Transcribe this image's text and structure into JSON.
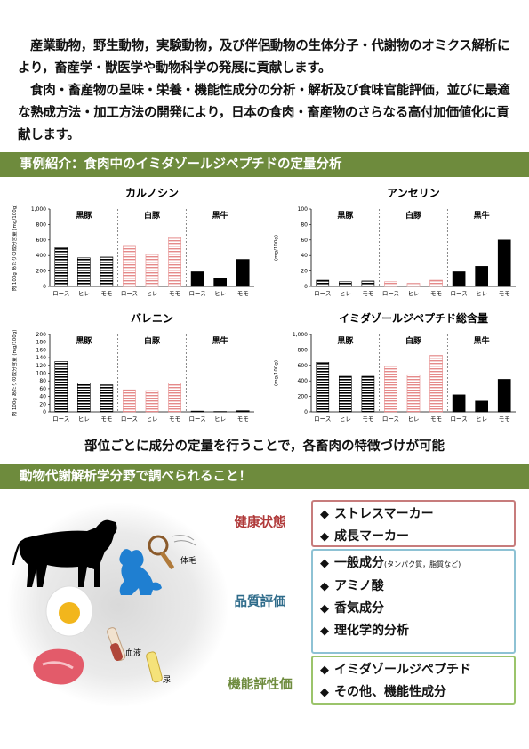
{
  "intro": {
    "p1": "産業動物，野生動物，実験動物，及び伴侶動物の生体分子・代謝物のオミクス解析により，畜産学・獣医学や動物科学の発展に貢献します。",
    "p2": "食肉・畜産物の呈味・栄養・機能性成分の分析・解析及び食味官能評価，並びに最適な熟成方法・加工方法の開発により，日本の食肉・畜産物のさらなる高付加価値化に貢献します。"
  },
  "section1": {
    "title": "事例紹介：食肉中のイミダゾールジペプチドの定量分析"
  },
  "caption": "部位ごとに成分の定量を行うことで，各畜肉の特徴づけが可能",
  "section2": {
    "title": "動物代謝解析学分野で調べられること！"
  },
  "colors": {
    "kurobuta": "#000000",
    "shirobuta": "#e58a8a",
    "kurogyu": "#000000",
    "header_bg": "#6e8b3d"
  },
  "chart_data": [
    {
      "type": "bar",
      "title": "カルノシン",
      "ylabel": "肉 100g あたりの成分含量 (mg/100g)",
      "ylim": [
        0,
        1000
      ],
      "yticks": [
        "0",
        "200",
        "400",
        "600",
        "800",
        "1,000"
      ],
      "groups": [
        "黒豚",
        "白豚",
        "黒牛"
      ],
      "categories": [
        "ロース",
        "ヒレ",
        "モモ",
        "ロース",
        "ヒレ",
        "モモ",
        "ロース",
        "ヒレ",
        "モモ"
      ],
      "values": [
        500,
        370,
        380,
        530,
        420,
        640,
        190,
        110,
        350
      ]
    },
    {
      "type": "bar",
      "title": "アンセリン",
      "ylabel": "(mg/100g)",
      "ylim": [
        0,
        100
      ],
      "yticks": [
        "0",
        "20",
        "40",
        "60",
        "80",
        "100"
      ],
      "groups": [
        "黒豚",
        "白豚",
        "黒牛"
      ],
      "categories": [
        "ロース",
        "ヒレ",
        "モモ",
        "ロース",
        "ヒレ",
        "モモ",
        "ロース",
        "ヒレ",
        "モモ"
      ],
      "values": [
        8,
        6,
        7,
        6,
        4,
        8,
        19,
        26,
        60
      ]
    },
    {
      "type": "bar",
      "title": "バレニン",
      "ylabel": "肉 100g あたりの成分含量 (mg/100g)",
      "ylim": [
        0,
        200
      ],
      "yticks": [
        "0",
        "20",
        "40",
        "60",
        "80",
        "100",
        "120",
        "140",
        "160",
        "180",
        "200"
      ],
      "groups": [
        "黒豚",
        "白豚",
        "黒牛"
      ],
      "categories": [
        "ロース",
        "ヒレ",
        "モモ",
        "ロース",
        "ヒレ",
        "モモ",
        "ロース",
        "ヒレ",
        "モモ"
      ],
      "values": [
        130,
        75,
        70,
        57,
        55,
        75,
        2,
        1,
        3
      ]
    },
    {
      "type": "bar",
      "title": "イミダゾールジペプチド総含量",
      "ylabel": "(mg/100g)",
      "ylim": [
        0,
        1000
      ],
      "yticks": [
        "0",
        "200",
        "400",
        "600",
        "800",
        "1,000"
      ],
      "groups": [
        "黒豚",
        "白豚",
        "黒牛"
      ],
      "categories": [
        "ロース",
        "ヒレ",
        "モモ",
        "ロース",
        "ヒレ",
        "モモ",
        "ロース",
        "ヒレ",
        "モモ"
      ],
      "values": [
        640,
        460,
        460,
        590,
        480,
        730,
        220,
        140,
        420
      ]
    }
  ],
  "illustration": {
    "fur_label": "体毛",
    "blood_label": "血液",
    "urine_label": "尿"
  },
  "categories": [
    {
      "label": "健康状態",
      "items": [
        {
          "text": "ストレスマーカー"
        },
        {
          "text": "成長マーカー"
        }
      ]
    },
    {
      "label": "品質評価",
      "items": [
        {
          "text": "一般成分",
          "sub": "(タンパク質，脂質など)"
        },
        {
          "text": "アミノ酸"
        },
        {
          "text": "香気成分"
        },
        {
          "text": "理化学的分析"
        }
      ]
    },
    {
      "label": "機能評性価",
      "items": [
        {
          "text": "イミダゾールジペプチド"
        },
        {
          "text": "その他、機能性成分"
        }
      ]
    }
  ],
  "bullet": "◆"
}
